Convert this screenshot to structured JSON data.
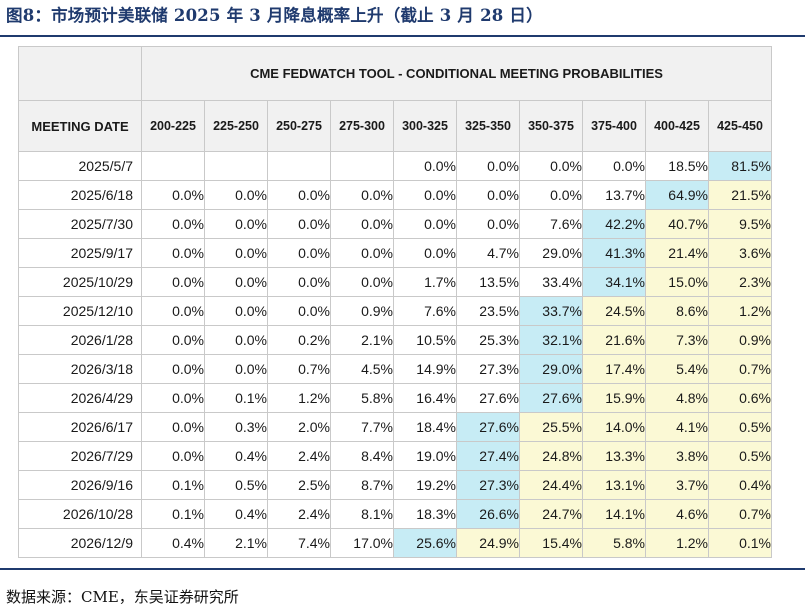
{
  "figure_title": "图8：市场预计美联储 2025 年 3 月降息概率上升（截止 3 月 28 日）",
  "source_note": "数据来源：CME，东吴证券研究所",
  "colors": {
    "title_blue": "#1f3a6e",
    "highlight_max": "#c7ecf5",
    "highlight_above": "#fbf9d5",
    "header_gray": "#f1f1f1"
  },
  "table": {
    "banner": "CME FEDWATCH TOOL - CONDITIONAL MEETING PROBABILITIES",
    "date_header": "MEETING DATE",
    "ranges": [
      "200-225",
      "225-250",
      "250-275",
      "275-300",
      "300-325",
      "325-350",
      "350-375",
      "375-400",
      "400-425",
      "425-450"
    ],
    "rows": [
      {
        "date": "2025/5/7",
        "max": 9,
        "values": [
          "",
          "",
          "",
          "",
          "0.0%",
          "0.0%",
          "0.0%",
          "0.0%",
          "18.5%",
          "81.5%"
        ]
      },
      {
        "date": "2025/6/18",
        "max": 8,
        "values": [
          "0.0%",
          "0.0%",
          "0.0%",
          "0.0%",
          "0.0%",
          "0.0%",
          "0.0%",
          "13.7%",
          "64.9%",
          "21.5%"
        ]
      },
      {
        "date": "2025/7/30",
        "max": 7,
        "values": [
          "0.0%",
          "0.0%",
          "0.0%",
          "0.0%",
          "0.0%",
          "0.0%",
          "7.6%",
          "42.2%",
          "40.7%",
          "9.5%"
        ]
      },
      {
        "date": "2025/9/17",
        "max": 7,
        "values": [
          "0.0%",
          "0.0%",
          "0.0%",
          "0.0%",
          "0.0%",
          "4.7%",
          "29.0%",
          "41.3%",
          "21.4%",
          "3.6%"
        ]
      },
      {
        "date": "2025/10/29",
        "max": 7,
        "values": [
          "0.0%",
          "0.0%",
          "0.0%",
          "0.0%",
          "1.7%",
          "13.5%",
          "33.4%",
          "34.1%",
          "15.0%",
          "2.3%"
        ]
      },
      {
        "date": "2025/12/10",
        "max": 6,
        "values": [
          "0.0%",
          "0.0%",
          "0.0%",
          "0.9%",
          "7.6%",
          "23.5%",
          "33.7%",
          "24.5%",
          "8.6%",
          "1.2%"
        ]
      },
      {
        "date": "2026/1/28",
        "max": 6,
        "values": [
          "0.0%",
          "0.0%",
          "0.2%",
          "2.1%",
          "10.5%",
          "25.3%",
          "32.1%",
          "21.6%",
          "7.3%",
          "0.9%"
        ]
      },
      {
        "date": "2026/3/18",
        "max": 6,
        "values": [
          "0.0%",
          "0.0%",
          "0.7%",
          "4.5%",
          "14.9%",
          "27.3%",
          "29.0%",
          "17.4%",
          "5.4%",
          "0.7%"
        ]
      },
      {
        "date": "2026/4/29",
        "max": 6,
        "values": [
          "0.0%",
          "0.1%",
          "1.2%",
          "5.8%",
          "16.4%",
          "27.6%",
          "27.6%",
          "15.9%",
          "4.8%",
          "0.6%"
        ]
      },
      {
        "date": "2026/6/17",
        "max": 5,
        "values": [
          "0.0%",
          "0.3%",
          "2.0%",
          "7.7%",
          "18.4%",
          "27.6%",
          "25.5%",
          "14.0%",
          "4.1%",
          "0.5%"
        ]
      },
      {
        "date": "2026/7/29",
        "max": 5,
        "values": [
          "0.0%",
          "0.4%",
          "2.4%",
          "8.4%",
          "19.0%",
          "27.4%",
          "24.8%",
          "13.3%",
          "3.8%",
          "0.5%"
        ]
      },
      {
        "date": "2026/9/16",
        "max": 5,
        "values": [
          "0.1%",
          "0.5%",
          "2.5%",
          "8.7%",
          "19.2%",
          "27.3%",
          "24.4%",
          "13.1%",
          "3.7%",
          "0.4%"
        ]
      },
      {
        "date": "2026/10/28",
        "max": 5,
        "values": [
          "0.1%",
          "0.4%",
          "2.4%",
          "8.1%",
          "18.3%",
          "26.6%",
          "24.7%",
          "14.1%",
          "4.6%",
          "0.7%"
        ]
      },
      {
        "date": "2026/12/9",
        "max": 4,
        "values": [
          "0.4%",
          "2.1%",
          "7.4%",
          "17.0%",
          "25.6%",
          "24.9%",
          "15.4%",
          "5.8%",
          "1.2%",
          "0.1%"
        ]
      }
    ]
  }
}
